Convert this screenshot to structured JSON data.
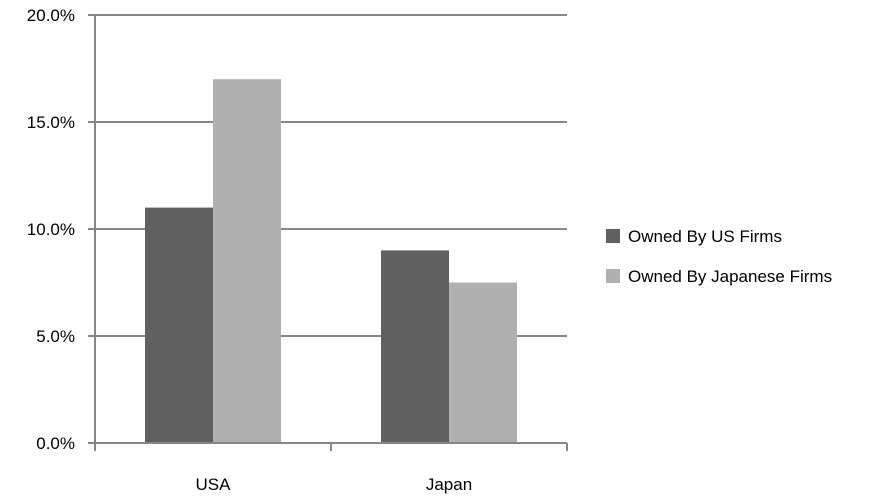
{
  "chart_data": {
    "type": "bar",
    "title": "",
    "xlabel": "",
    "ylabel": "",
    "categories": [
      "USA",
      "Japan"
    ],
    "series": [
      {
        "name": "Owned By US Firms",
        "values": [
          11.0,
          9.0
        ],
        "color": "#606060"
      },
      {
        "name": "Owned By Japanese Firms",
        "values": [
          17.0,
          7.5
        ],
        "color": "#b0b0b0"
      }
    ],
    "ylim": [
      0,
      20
    ],
    "yticks": [
      0,
      5,
      10,
      15,
      20
    ],
    "ytick_labels": [
      "0.0%",
      "5.0%",
      "10.0%",
      "15.0%",
      "20.0%"
    ],
    "grid": true,
    "legend_position": "right"
  },
  "colors": {
    "axis": "#868686",
    "grid": "#868686"
  }
}
